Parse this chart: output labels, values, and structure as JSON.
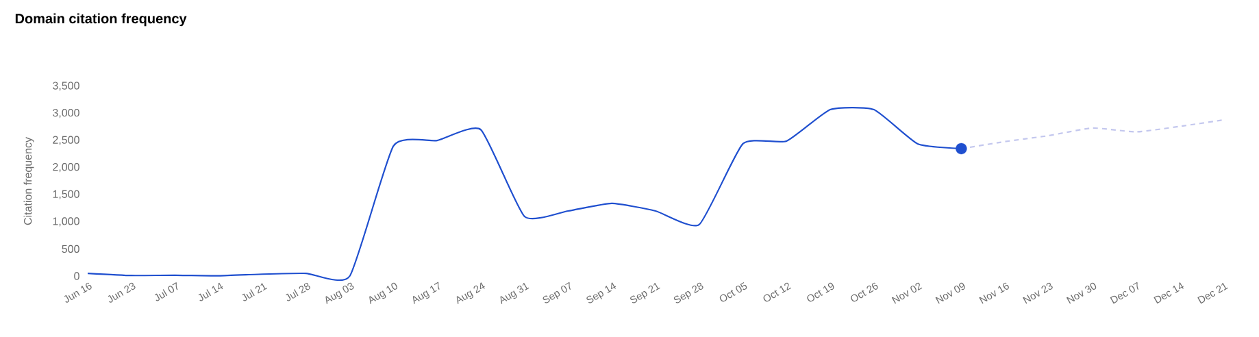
{
  "chart_data": {
    "type": "line",
    "title": "Domain citation frequency",
    "ylabel": "Citation frequency",
    "categories": [
      "Jun 16",
      "Jun 23",
      "Jul 07",
      "Jul 14",
      "Jul 21",
      "Jul 28",
      "Aug 03",
      "Aug 10",
      "Aug 17",
      "Aug 24",
      "Aug 31",
      "Sep 07",
      "Sep 14",
      "Sep 21",
      "Sep 28",
      "Oct 05",
      "Oct 12",
      "Oct 19",
      "Oct 26",
      "Nov 02",
      "Nov 09",
      "Nov 16",
      "Nov 23",
      "Nov 30",
      "Dec 07",
      "Dec 14",
      "Dec 21"
    ],
    "series": [
      {
        "color": "#1f4fcf",
        "line_style": "solid",
        "marker": "none",
        "values": [
          50,
          10,
          15,
          5,
          35,
          50,
          0,
          2400,
          2500,
          2700,
          1100,
          1200,
          1340,
          1200,
          950,
          2440,
          2490,
          3070,
          3070,
          2440,
          2350,
          null,
          null,
          null,
          null,
          null,
          null
        ]
      },
      {
        "color": "#c3c7ee",
        "line_style": "dashed",
        "marker": "none",
        "values": [
          null,
          null,
          null,
          null,
          null,
          null,
          null,
          null,
          null,
          null,
          null,
          null,
          null,
          null,
          null,
          null,
          null,
          null,
          null,
          null,
          2350,
          2480,
          2590,
          2730,
          2660,
          2760,
          2880
        ]
      },
      {
        "type": "scatter",
        "color": "#1f4fcf",
        "marker": "circle",
        "values": [
          null,
          null,
          null,
          null,
          null,
          null,
          null,
          null,
          null,
          null,
          null,
          null,
          null,
          null,
          null,
          null,
          null,
          null,
          null,
          null,
          2350,
          null,
          null,
          null,
          null,
          null,
          null
        ]
      }
    ],
    "ylim": [
      0,
      3500
    ],
    "yticks": [
      0,
      500,
      {
        "value": 1000,
        "label": "1,000"
      },
      {
        "value": 1500,
        "label": "1,500"
      },
      {
        "value": 2000,
        "label": "2,000"
      },
      {
        "value": 2500,
        "label": "2,500"
      },
      {
        "value": 3000,
        "label": "3,000"
      },
      {
        "value": 3500,
        "label": "3,500"
      }
    ]
  }
}
